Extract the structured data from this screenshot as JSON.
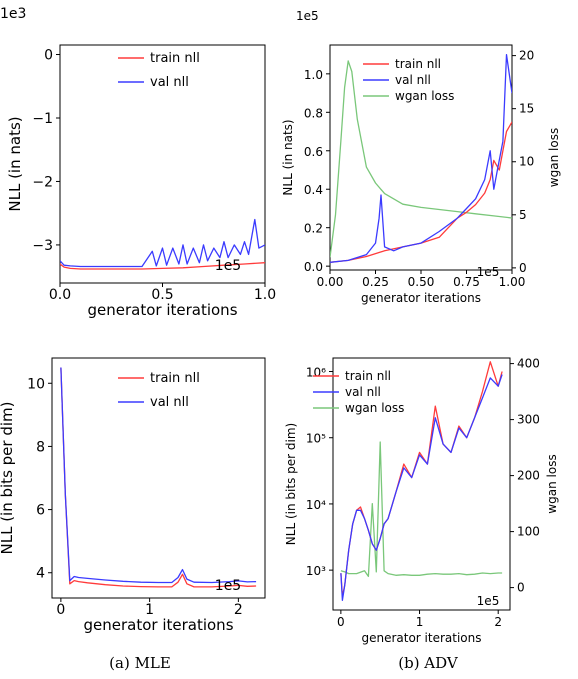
{
  "captions": {
    "a": "(a) MLE",
    "b": "(b) ADV"
  },
  "colors": {
    "train": "#ff3b3b",
    "val": "#3b3bff",
    "wgan": "#7ac77a"
  },
  "chart_data": [
    {
      "id": "mle_top",
      "type": "line",
      "xlabel": "generator iterations",
      "ylabel": "NLL (in nats)",
      "x_multiplier": "1e5",
      "y_multiplier": "1e3",
      "xlim": [
        0,
        1.0
      ],
      "ylim": [
        -3.6,
        0.15
      ],
      "xticks": [
        "0.0",
        "0.5",
        "1.0"
      ],
      "xtick_values": [
        0,
        0.5,
        1.0
      ],
      "yticks": [
        "0",
        "−1",
        "−2",
        "−3"
      ],
      "ytick_values": [
        0,
        -1,
        -2,
        -3
      ],
      "legend": [
        "train nll",
        "val nll"
      ],
      "series": [
        {
          "name": "train nll",
          "x": [
            0,
            0.02,
            0.05,
            0.1,
            0.2,
            0.3,
            0.4,
            0.5,
            0.6,
            0.7,
            0.8,
            0.9,
            1.0
          ],
          "y": [
            -3.3,
            -3.35,
            -3.37,
            -3.38,
            -3.38,
            -3.38,
            -3.38,
            -3.37,
            -3.36,
            -3.34,
            -3.32,
            -3.3,
            -3.28
          ]
        },
        {
          "name": "val nll",
          "x": [
            0,
            0.02,
            0.05,
            0.1,
            0.2,
            0.3,
            0.4,
            0.45,
            0.47,
            0.5,
            0.52,
            0.55,
            0.58,
            0.6,
            0.62,
            0.65,
            0.68,
            0.7,
            0.72,
            0.75,
            0.78,
            0.8,
            0.82,
            0.85,
            0.88,
            0.9,
            0.92,
            0.95,
            0.97,
            1.0
          ],
          "y": [
            -3.25,
            -3.32,
            -3.33,
            -3.34,
            -3.34,
            -3.34,
            -3.34,
            -3.1,
            -3.33,
            -3.05,
            -3.32,
            -3.05,
            -3.3,
            -3.0,
            -3.3,
            -3.05,
            -3.28,
            -3.0,
            -3.25,
            -3.05,
            -3.2,
            -2.95,
            -3.2,
            -3.0,
            -3.15,
            -2.95,
            -3.15,
            -2.6,
            -3.05,
            -3.0
          ]
        }
      ]
    },
    {
      "id": "adv_top",
      "type": "line",
      "xlabel": "generator iterations",
      "ylabel": "NLL (in nats)",
      "y2label": "wgan loss",
      "x_multiplier": "1e5",
      "y_multiplier": "1e5",
      "xlim": [
        0,
        1.0
      ],
      "ylim": [
        -0.02,
        1.15
      ],
      "y2lim": [
        -0.2,
        21
      ],
      "xticks": [
        "0.00",
        "0.25",
        "0.50",
        "0.75",
        "1.00"
      ],
      "xtick_values": [
        0,
        0.25,
        0.5,
        0.75,
        1.0
      ],
      "yticks": [
        "0.0",
        "0.2",
        "0.4",
        "0.6",
        "0.8",
        "1.0"
      ],
      "ytick_values": [
        0,
        0.2,
        0.4,
        0.6,
        0.8,
        1.0
      ],
      "y2ticks": [
        "0",
        "5",
        "10",
        "15",
        "20"
      ],
      "y2tick_values": [
        0,
        5,
        10,
        15,
        20
      ],
      "legend": [
        "train nll",
        "val nll",
        "wgan loss"
      ],
      "series": [
        {
          "name": "train nll",
          "x": [
            0,
            0.1,
            0.2,
            0.3,
            0.4,
            0.5,
            0.6,
            0.65,
            0.7,
            0.75,
            0.8,
            0.85,
            0.88,
            0.9,
            0.93,
            0.95,
            0.97,
            1.0
          ],
          "y": [
            0.02,
            0.03,
            0.05,
            0.08,
            0.1,
            0.12,
            0.15,
            0.2,
            0.25,
            0.28,
            0.32,
            0.38,
            0.45,
            0.55,
            0.5,
            0.6,
            0.7,
            0.75
          ]
        },
        {
          "name": "val nll",
          "x": [
            0,
            0.1,
            0.2,
            0.25,
            0.27,
            0.28,
            0.3,
            0.35,
            0.4,
            0.5,
            0.6,
            0.7,
            0.75,
            0.8,
            0.85,
            0.88,
            0.9,
            0.92,
            0.95,
            0.97,
            1.0
          ],
          "y": [
            0.02,
            0.03,
            0.06,
            0.12,
            0.25,
            0.37,
            0.1,
            0.08,
            0.1,
            0.12,
            0.18,
            0.25,
            0.3,
            0.35,
            0.45,
            0.6,
            0.4,
            0.5,
            0.65,
            1.1,
            0.9
          ]
        },
        {
          "name": "wgan loss",
          "axis": "y2",
          "x": [
            0,
            0.03,
            0.06,
            0.08,
            0.1,
            0.12,
            0.15,
            0.2,
            0.25,
            0.3,
            0.4,
            0.5,
            0.6,
            0.7,
            0.8,
            0.9,
            1.0
          ],
          "y": [
            1,
            5,
            12,
            17,
            19.5,
            18.5,
            14,
            9.5,
            8,
            7,
            6,
            5.7,
            5.5,
            5.3,
            5.1,
            4.9,
            4.7
          ]
        }
      ]
    },
    {
      "id": "mle_bottom",
      "type": "line",
      "xlabel": "generator iterations",
      "ylabel": "NLL (in bits per dim)",
      "x_multiplier": "1e5",
      "xlim": [
        -0.1,
        2.3
      ],
      "ylim": [
        3.2,
        10.8
      ],
      "xticks": [
        "0",
        "1",
        "2"
      ],
      "xtick_values": [
        0,
        1,
        2
      ],
      "yticks": [
        "4",
        "6",
        "8",
        "10"
      ],
      "ytick_values": [
        4,
        6,
        8,
        10
      ],
      "legend": [
        "train nll",
        "val nll"
      ],
      "series": [
        {
          "name": "train nll",
          "x": [
            0,
            0.05,
            0.1,
            0.15,
            0.2,
            0.3,
            0.5,
            0.7,
            0.9,
            1.1,
            1.25,
            1.32,
            1.37,
            1.42,
            1.5,
            1.7,
            1.9,
            2.0,
            2.1,
            2.2
          ],
          "y": [
            10.5,
            6.5,
            3.65,
            3.75,
            3.72,
            3.68,
            3.62,
            3.58,
            3.56,
            3.55,
            3.55,
            3.7,
            3.95,
            3.65,
            3.55,
            3.55,
            3.58,
            3.6,
            3.57,
            3.58
          ]
        },
        {
          "name": "val nll",
          "x": [
            0,
            0.05,
            0.1,
            0.15,
            0.2,
            0.3,
            0.5,
            0.7,
            0.9,
            1.1,
            1.25,
            1.32,
            1.37,
            1.42,
            1.5,
            1.7,
            1.9,
            2.0,
            2.1,
            2.2
          ],
          "y": [
            10.5,
            6.5,
            3.75,
            3.88,
            3.85,
            3.82,
            3.77,
            3.73,
            3.7,
            3.69,
            3.69,
            3.85,
            4.1,
            3.8,
            3.7,
            3.69,
            3.72,
            3.74,
            3.71,
            3.72
          ]
        }
      ]
    },
    {
      "id": "adv_bottom",
      "type": "line",
      "xlabel": "generator iterations",
      "ylabel": "NLL (in bits per dim)",
      "y2label": "wgan loss",
      "x_multiplier": "1e5",
      "y_scale": "log",
      "xlim": [
        -0.1,
        2.15
      ],
      "ylim": [
        250,
        1600000
      ],
      "y2lim": [
        -40,
        410
      ],
      "xticks": [
        "0",
        "1",
        "2"
      ],
      "xtick_values": [
        0,
        1,
        2
      ],
      "yticks": [
        "10³",
        "10⁴",
        "10⁵",
        "10⁶"
      ],
      "ytick_values": [
        1000,
        10000,
        100000,
        1000000
      ],
      "y2ticks": [
        "0",
        "100",
        "200",
        "300",
        "400"
      ],
      "y2tick_values": [
        0,
        100,
        200,
        300,
        400
      ],
      "legend": [
        "train nll",
        "val nll",
        "wgan loss"
      ],
      "series": [
        {
          "name": "train nll",
          "x": [
            0,
            0.02,
            0.05,
            0.1,
            0.15,
            0.2,
            0.25,
            0.3,
            0.35,
            0.4,
            0.45,
            0.5,
            0.55,
            0.6,
            0.7,
            0.8,
            0.9,
            1.0,
            1.1,
            1.2,
            1.3,
            1.4,
            1.5,
            1.6,
            1.7,
            1.8,
            1.9,
            2.0,
            2.05
          ],
          "y": [
            900,
            400,
            600,
            2000,
            5000,
            8000,
            9000,
            6000,
            4000,
            2500,
            2000,
            3000,
            5000,
            6000,
            15000,
            40000,
            25000,
            60000,
            40000,
            300000,
            80000,
            60000,
            150000,
            100000,
            200000,
            500000,
            1400000,
            600000,
            1000000
          ]
        },
        {
          "name": "val nll",
          "x": [
            0,
            0.02,
            0.05,
            0.1,
            0.15,
            0.2,
            0.25,
            0.3,
            0.35,
            0.4,
            0.45,
            0.5,
            0.55,
            0.6,
            0.7,
            0.8,
            0.9,
            1.0,
            1.1,
            1.2,
            1.3,
            1.4,
            1.5,
            1.6,
            1.7,
            1.8,
            1.9,
            2.0,
            2.05
          ],
          "y": [
            900,
            350,
            600,
            2000,
            5000,
            8000,
            8000,
            6000,
            4000,
            2500,
            2000,
            3000,
            5000,
            6000,
            15000,
            35000,
            25000,
            55000,
            40000,
            200000,
            80000,
            60000,
            140000,
            100000,
            200000,
            400000,
            800000,
            600000,
            900000
          ]
        },
        {
          "name": "wgan loss",
          "axis": "y2",
          "x": [
            0,
            0.05,
            0.1,
            0.2,
            0.3,
            0.35,
            0.4,
            0.45,
            0.5,
            0.55,
            0.6,
            0.7,
            0.8,
            0.9,
            1.0,
            1.1,
            1.2,
            1.3,
            1.4,
            1.5,
            1.6,
            1.7,
            1.8,
            1.9,
            2.0,
            2.05
          ],
          "y": [
            30,
            28,
            25,
            25,
            30,
            20,
            150,
            28,
            260,
            30,
            25,
            22,
            23,
            22,
            22,
            24,
            25,
            24,
            24,
            25,
            23,
            24,
            26,
            25,
            26,
            26
          ]
        }
      ]
    }
  ]
}
